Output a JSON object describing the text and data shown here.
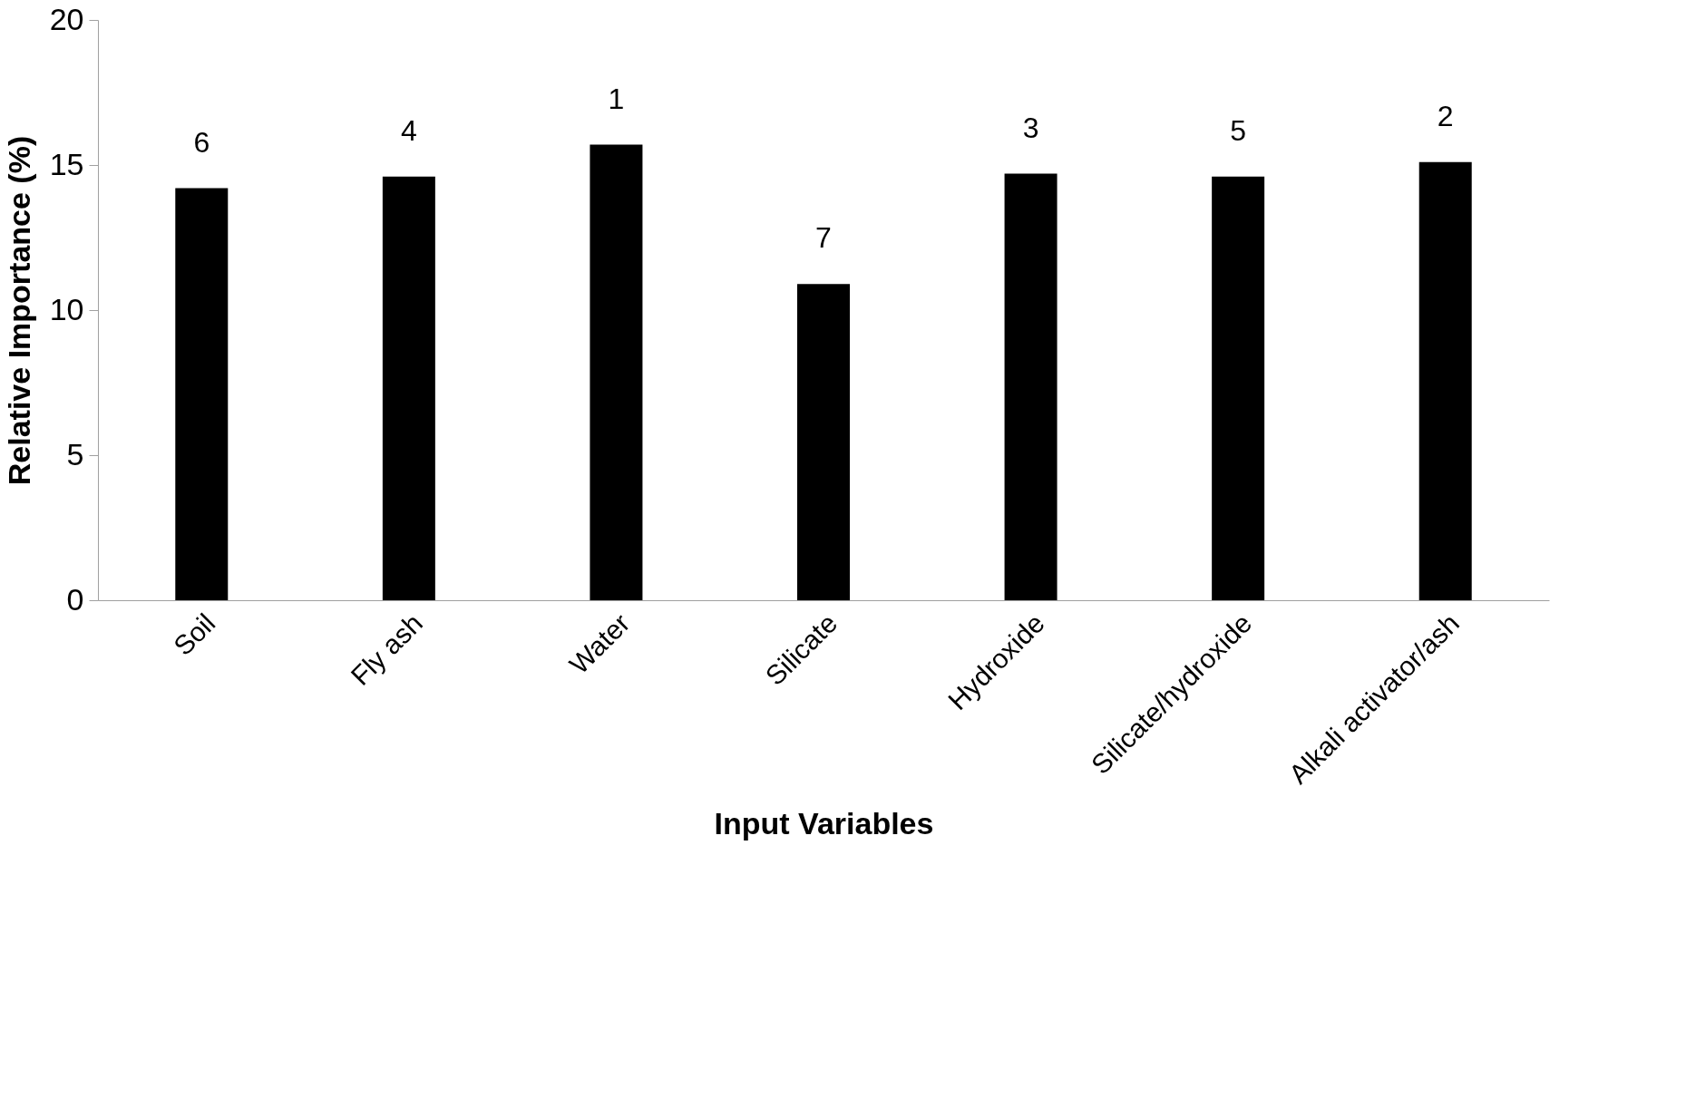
{
  "chart_data": {
    "type": "bar",
    "xlabel": "Input Variables",
    "ylabel": "Relative Importance (%)",
    "categories": [
      "Soil",
      "Fly ash",
      "Water",
      "Silicate",
      "Hydroxide",
      "Silicate/hydroxide",
      "Alkali activator/ash"
    ],
    "values": [
      14.2,
      14.6,
      15.7,
      10.9,
      14.7,
      14.6,
      15.1
    ],
    "annotations": [
      "6",
      "4",
      "1",
      "7",
      "3",
      "5",
      "2"
    ],
    "color": "#000000",
    "ylim": [
      0,
      20
    ],
    "yticks": [
      0,
      5,
      10,
      15,
      20
    ],
    "grid": false
  }
}
